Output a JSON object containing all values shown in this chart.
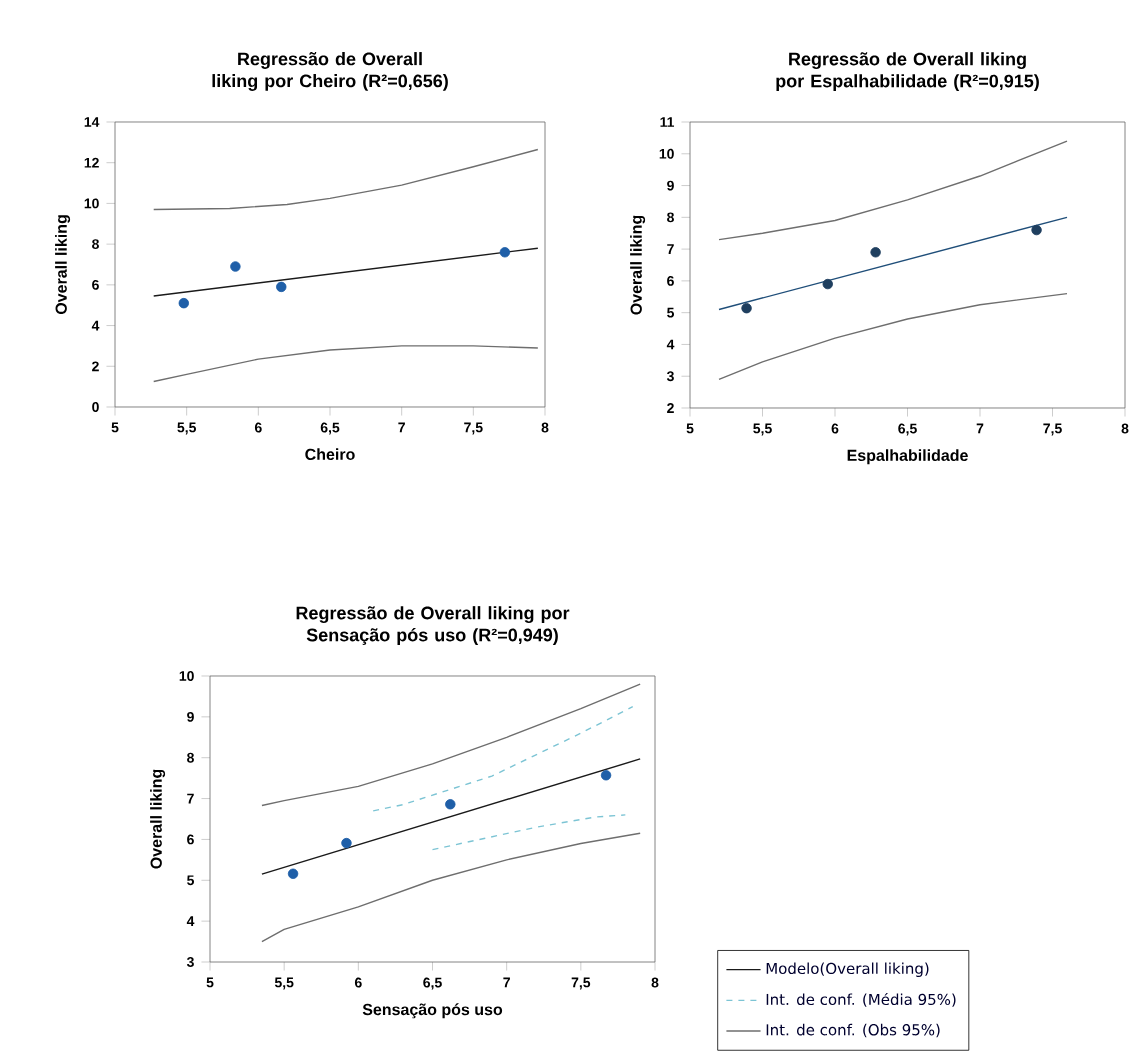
{
  "chart_data": [
    {
      "type": "scatter",
      "marker": "circle",
      "title": "Regressão de Overall liking por Cheiro (R²=0,656)",
      "xlabel": "Cheiro",
      "ylabel": "Overall liking",
      "xlim": [
        5,
        8
      ],
      "ylim": [
        0,
        14
      ],
      "xticks": [
        5,
        {
          "value": 5.5,
          "label": "5,5"
        },
        6,
        {
          "value": 6.5,
          "label": "6,5"
        },
        7,
        {
          "value": 7.5,
          "label": "7,5"
        },
        8
      ],
      "yticks": [
        0,
        2,
        4,
        6,
        8,
        10,
        12,
        14
      ],
      "series": [
        {
          "type": "line",
          "marker": "none",
          "color": "#1a1a1a",
          "x": [
            5.27,
            7.95
          ],
          "values": [
            5.45,
            7.8
          ]
        },
        {
          "type": "line",
          "marker": "none",
          "color": "#6e6e6e",
          "x": [
            5.27,
            5.8,
            6.2,
            6.5,
            7,
            7.5,
            7.95
          ],
          "values": [
            9.7,
            9.75,
            9.95,
            10.25,
            10.9,
            11.8,
            12.65
          ]
        },
        {
          "type": "line",
          "marker": "none",
          "color": "#6e6e6e",
          "x": [
            5.27,
            5.5,
            6,
            6.5,
            7,
            7.5,
            7.95
          ],
          "values": [
            1.25,
            1.6,
            2.35,
            2.8,
            3.0,
            3.0,
            2.9
          ]
        },
        {
          "type": "scatter",
          "color": "#1f5fa8",
          "x": [
            5.48,
            5.84,
            6.16,
            7.72
          ],
          "values": [
            5.1,
            6.9,
            5.9,
            7.6
          ]
        }
      ]
    },
    {
      "type": "scatter",
      "marker": "circle",
      "title": "Regressão de Overall liking por Espalhabilidade (R²=0,915)",
      "xlabel": "Espalhabilidade",
      "ylabel": "Overall liking",
      "xlim": [
        5,
        8
      ],
      "ylim": [
        2,
        11
      ],
      "xticks": [
        5,
        {
          "value": 5.5,
          "label": "5,5"
        },
        6,
        {
          "value": 6.5,
          "label": "6,5"
        },
        7,
        {
          "value": 7.5,
          "label": "7,5"
        },
        8
      ],
      "yticks": [
        2,
        3,
        4,
        5,
        6,
        7,
        8,
        9,
        10,
        11
      ],
      "series": [
        {
          "type": "line",
          "marker": "none",
          "color": "#1f4e79",
          "x": [
            5.2,
            7.6
          ],
          "values": [
            5.1,
            8.0
          ]
        },
        {
          "type": "line",
          "marker": "none",
          "color": "#6e6e6e",
          "x": [
            5.2,
            5.5,
            6,
            6.5,
            7,
            7.6
          ],
          "values": [
            7.3,
            7.5,
            7.9,
            8.55,
            9.3,
            10.4
          ]
        },
        {
          "type": "line",
          "marker": "none",
          "color": "#6e6e6e",
          "x": [
            5.2,
            5.5,
            6,
            6.5,
            7,
            7.6
          ],
          "values": [
            2.9,
            3.45,
            4.2,
            4.8,
            5.25,
            5.6
          ]
        },
        {
          "type": "scatter",
          "color": "#1f3f5f",
          "x": [
            5.39,
            5.95,
            6.28,
            7.39
          ],
          "values": [
            5.14,
            5.9,
            6.9,
            7.6
          ]
        }
      ]
    },
    {
      "type": "scatter",
      "marker": "circle",
      "title": "Regressão de Overall liking por Sensação pós uso (R²=0,949)",
      "xlabel": "Sensação pós uso",
      "ylabel": "Overall liking",
      "xlim": [
        5,
        8
      ],
      "ylim": [
        3,
        10
      ],
      "xticks": [
        5,
        {
          "value": 5.5,
          "label": "5,5"
        },
        6,
        {
          "value": 6.5,
          "label": "6,5"
        },
        7,
        {
          "value": 7.5,
          "label": "7,5"
        },
        8
      ],
      "yticks": [
        3,
        4,
        5,
        6,
        7,
        8,
        9,
        10
      ],
      "legend": "right",
      "series": [
        {
          "type": "line",
          "marker": "none",
          "name": "Modelo(Overall liking)",
          "color": "#1a1a1a",
          "x": [
            5.35,
            7.9
          ],
          "values": [
            5.15,
            7.97
          ]
        },
        {
          "type": "line",
          "marker": "none",
          "name": "Int. de conf. (Média 95%)",
          "line_style": "dashed",
          "color": "#7cc4d4",
          "x": [
            6.1,
            6.3,
            6.9,
            7.5,
            7.85
          ],
          "values": [
            6.7,
            6.85,
            7.55,
            8.6,
            9.25
          ]
        },
        {
          "type": "line",
          "marker": "none",
          "line_style": "dashed",
          "color": "#7cc4d4",
          "x": [
            6.5,
            7.2,
            7.6,
            7.8
          ],
          "values": [
            5.75,
            6.3,
            6.55,
            6.6
          ]
        },
        {
          "type": "line",
          "marker": "none",
          "name": "Int. de conf. (Obs 95%)",
          "color": "#6e6e6e",
          "x": [
            5.35,
            5.5,
            6,
            6.5,
            7,
            7.5,
            7.9
          ],
          "values": [
            6.83,
            6.95,
            7.3,
            7.85,
            8.5,
            9.2,
            9.8
          ]
        },
        {
          "type": "line",
          "marker": "none",
          "color": "#6e6e6e",
          "x": [
            5.35,
            5.5,
            6,
            6.5,
            7,
            7.5,
            7.9
          ],
          "values": [
            3.5,
            3.8,
            4.35,
            5.0,
            5.5,
            5.9,
            6.15
          ]
        },
        {
          "type": "scatter",
          "color": "#1f5fa8",
          "x": [
            5.56,
            5.92,
            6.62,
            7.67
          ],
          "values": [
            5.16,
            5.91,
            6.86,
            7.57
          ]
        }
      ]
    }
  ]
}
